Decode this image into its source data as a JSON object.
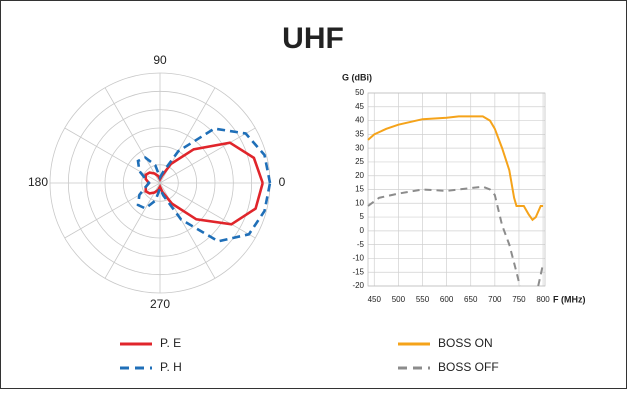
{
  "title": "UHF",
  "chart_data": [
    {
      "type": "polar",
      "theta": [
        0,
        15,
        30,
        45,
        60,
        75,
        90,
        105,
        120,
        135,
        150,
        165,
        180,
        195,
        210,
        225,
        240,
        255,
        270,
        285,
        300,
        315,
        330,
        345,
        360
      ],
      "rlim": [
        0,
        6
      ],
      "thetaticks": [
        0,
        90,
        180,
        270
      ],
      "series": [
        {
          "name": "P. E",
          "color": "#e0252b",
          "dash": false,
          "values": [
            5.6,
            5.3,
            4.4,
            2.6,
            1.2,
            0.4,
            0.2,
            0.4,
            0.6,
            0.8,
            0.9,
            0.8,
            0.6,
            0.8,
            0.9,
            0.8,
            0.6,
            0.4,
            0.2,
            0.5,
            1.3,
            2.8,
            4.5,
            5.4,
            5.6
          ]
        },
        {
          "name": "P. H",
          "color": "#1f6fb8",
          "dash": true,
          "values": [
            6.0,
            5.9,
            5.4,
            4.2,
            2.0,
            0.6,
            0.3,
            1.0,
            1.6,
            1.7,
            1.3,
            0.8,
            0.6,
            0.8,
            1.3,
            1.7,
            1.6,
            1.0,
            0.3,
            0.7,
            2.3,
            4.5,
            5.6,
            5.9,
            6.0
          ]
        }
      ]
    },
    {
      "type": "line",
      "ylabel": "G (dBi)",
      "xlabel": "F (MHz)",
      "xlim": [
        437,
        804
      ],
      "ylim": [
        -20,
        50
      ],
      "xticks": [
        450,
        500,
        550,
        600,
        650,
        700,
        750,
        800
      ],
      "yticks": [
        -20,
        -15,
        -10,
        -5,
        0,
        5,
        10,
        15,
        20,
        25,
        30,
        35,
        40,
        45,
        50
      ],
      "grid": true,
      "series": [
        {
          "name": "BOSS ON",
          "color": "#f5a31a",
          "dash": false,
          "x": [
            437,
            450,
            475,
            500,
            550,
            600,
            625,
            650,
            675,
            690,
            700,
            715,
            730,
            740,
            745,
            760,
            770,
            778,
            785,
            795,
            800
          ],
          "values": [
            33,
            35,
            37,
            38.5,
            40.5,
            41,
            41.5,
            41.5,
            41.5,
            40,
            37,
            30,
            22,
            12,
            9,
            9,
            6,
            4,
            5,
            9,
            9
          ]
        },
        {
          "name": "BOSS OFF",
          "color": "#8c8c8c",
          "dash": true,
          "x": [
            437,
            460,
            500,
            550,
            600,
            650,
            675,
            690,
            700,
            715,
            730,
            745,
            752,
            770,
            790,
            800
          ],
          "values": [
            9,
            12,
            13.5,
            15,
            14.5,
            15.5,
            16,
            15,
            13,
            2,
            -5,
            -15,
            -20,
            null,
            -20,
            -12
          ]
        }
      ]
    }
  ]
}
